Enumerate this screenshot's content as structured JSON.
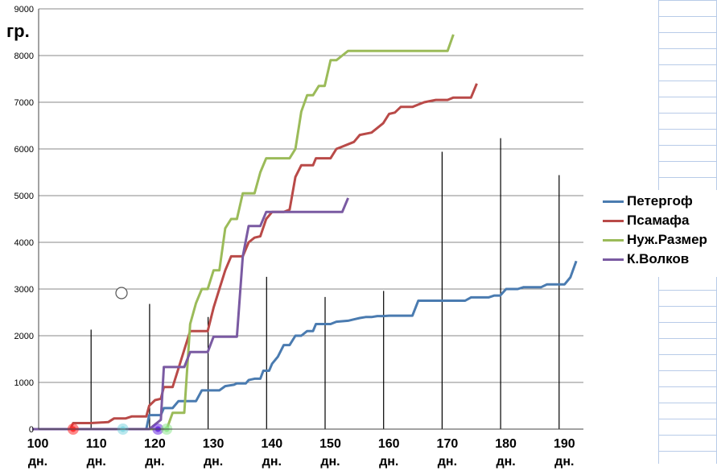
{
  "chart_data": {
    "type": "line",
    "ylabel": "гр.",
    "ylim": [
      0,
      9000
    ],
    "xlim": [
      100,
      193
    ],
    "yticks": [
      0,
      1000,
      2000,
      3000,
      4000,
      5000,
      6000,
      7000,
      8000,
      9000
    ],
    "xticks": [
      {
        "value": 100,
        "label": "100",
        "unit": "дн."
      },
      {
        "value": 110,
        "label": "110",
        "unit": "дн."
      },
      {
        "value": 120,
        "label": "120",
        "unit": "дн."
      },
      {
        "value": 130,
        "label": "130",
        "unit": "дн."
      },
      {
        "value": 140,
        "label": "140",
        "unit": "дн."
      },
      {
        "value": 150,
        "label": "150",
        "unit": "дн."
      },
      {
        "value": 160,
        "label": "160",
        "unit": "дн."
      },
      {
        "value": 170,
        "label": "170",
        "unit": "дн."
      },
      {
        "value": 180,
        "label": "180",
        "unit": "дн."
      },
      {
        "value": 190,
        "label": "190",
        "unit": "дн."
      }
    ],
    "grid": "horizontal",
    "legend_position": "right",
    "series": [
      {
        "name": "Петергоф",
        "color": "#4a7bb0",
        "points": [
          [
            100,
            0
          ],
          [
            119.5,
            0
          ],
          [
            120,
            300
          ],
          [
            122,
            300
          ],
          [
            122.5,
            450
          ],
          [
            124,
            450
          ],
          [
            125,
            600
          ],
          [
            128,
            600
          ],
          [
            129,
            830
          ],
          [
            132,
            830
          ],
          [
            133,
            920
          ],
          [
            134.5,
            950
          ],
          [
            135,
            980
          ],
          [
            136.5,
            980
          ],
          [
            137,
            1050
          ],
          [
            138,
            1080
          ],
          [
            139,
            1080
          ],
          [
            139.5,
            1250
          ],
          [
            140.5,
            1250
          ],
          [
            141,
            1400
          ],
          [
            142,
            1550
          ],
          [
            143,
            1800
          ],
          [
            144,
            1800
          ],
          [
            145,
            2000
          ],
          [
            146,
            2000
          ],
          [
            147,
            2100
          ],
          [
            148,
            2100
          ],
          [
            148.5,
            2250
          ],
          [
            151,
            2250
          ],
          [
            152,
            2300
          ],
          [
            154,
            2320
          ],
          [
            155,
            2350
          ],
          [
            156,
            2380
          ],
          [
            157,
            2400
          ],
          [
            158,
            2400
          ],
          [
            159,
            2420
          ],
          [
            160,
            2420
          ],
          [
            161,
            2430
          ],
          [
            165,
            2430
          ],
          [
            166,
            2750
          ],
          [
            174,
            2750
          ],
          [
            175,
            2820
          ],
          [
            178,
            2820
          ],
          [
            179,
            2860
          ],
          [
            180,
            2860
          ],
          [
            181,
            3000
          ],
          [
            183,
            3000
          ],
          [
            184,
            3040
          ],
          [
            187,
            3040
          ],
          [
            188,
            3100
          ],
          [
            191,
            3100
          ],
          [
            192,
            3250
          ],
          [
            193,
            3600
          ]
        ]
      },
      {
        "name": "Псамафа",
        "color": "#b94a48",
        "points": [
          [
            100,
            0
          ],
          [
            106.5,
            0
          ],
          [
            107,
            130
          ],
          [
            110,
            130
          ],
          [
            113,
            150
          ],
          [
            114,
            230
          ],
          [
            116,
            230
          ],
          [
            117,
            270
          ],
          [
            118,
            270
          ],
          [
            119.5,
            270
          ],
          [
            120,
            500
          ],
          [
            121,
            620
          ],
          [
            122,
            650
          ],
          [
            122.5,
            900
          ],
          [
            124,
            900
          ],
          [
            125,
            1300
          ],
          [
            126,
            1700
          ],
          [
            127,
            2100
          ],
          [
            129,
            2100
          ],
          [
            130,
            2100
          ],
          [
            131,
            2600
          ],
          [
            132,
            3000
          ],
          [
            133,
            3400
          ],
          [
            134,
            3700
          ],
          [
            136,
            3700
          ],
          [
            137,
            4000
          ],
          [
            138,
            4100
          ],
          [
            139,
            4130
          ],
          [
            140,
            4500
          ],
          [
            141,
            4650
          ],
          [
            143,
            4650
          ],
          [
            144,
            4700
          ],
          [
            145,
            5400
          ],
          [
            146,
            5650
          ],
          [
            148,
            5650
          ],
          [
            148.5,
            5800
          ],
          [
            151,
            5800
          ],
          [
            152,
            6000
          ],
          [
            153,
            6050
          ],
          [
            154,
            6100
          ],
          [
            155,
            6150
          ],
          [
            156,
            6300
          ],
          [
            158,
            6350
          ],
          [
            159,
            6450
          ],
          [
            160,
            6550
          ],
          [
            161,
            6750
          ],
          [
            162,
            6780
          ],
          [
            163,
            6900
          ],
          [
            165,
            6900
          ],
          [
            166,
            6950
          ],
          [
            167,
            7000
          ],
          [
            169,
            7050
          ],
          [
            170,
            7050
          ],
          [
            171,
            7050
          ],
          [
            172,
            7100
          ],
          [
            174,
            7100
          ],
          [
            175,
            7100
          ],
          [
            176,
            7400
          ]
        ]
      },
      {
        "name": "Нуж.Размер",
        "color": "#9bbb59",
        "points": [
          [
            100,
            0
          ],
          [
            123,
            0
          ],
          [
            124,
            350
          ],
          [
            126,
            350
          ],
          [
            127,
            2250
          ],
          [
            128,
            2700
          ],
          [
            129,
            3000
          ],
          [
            130,
            3000
          ],
          [
            131,
            3400
          ],
          [
            132,
            3400
          ],
          [
            133,
            4300
          ],
          [
            134,
            4500
          ],
          [
            135,
            4500
          ],
          [
            136,
            5050
          ],
          [
            138,
            5050
          ],
          [
            139,
            5500
          ],
          [
            140,
            5800
          ],
          [
            143,
            5800
          ],
          [
            144,
            5800
          ],
          [
            145,
            6000
          ],
          [
            146,
            6800
          ],
          [
            147,
            7150
          ],
          [
            148,
            7150
          ],
          [
            149,
            7350
          ],
          [
            150,
            7350
          ],
          [
            151,
            7900
          ],
          [
            152,
            7900
          ],
          [
            153,
            8000
          ],
          [
            154,
            8100
          ],
          [
            169,
            8100
          ],
          [
            170,
            8100
          ],
          [
            171,
            8100
          ],
          [
            172,
            8450
          ]
        ]
      },
      {
        "name": "К.Волков",
        "color": "#7a5aa2",
        "points": [
          [
            100,
            0
          ],
          [
            120,
            0
          ],
          [
            121,
            100
          ],
          [
            122,
            200
          ],
          [
            122.5,
            1330
          ],
          [
            126,
            1330
          ],
          [
            127,
            1650
          ],
          [
            130,
            1650
          ],
          [
            131,
            1980
          ],
          [
            135,
            1980
          ],
          [
            136,
            3700
          ],
          [
            137,
            4350
          ],
          [
            139,
            4350
          ],
          [
            140,
            4650
          ],
          [
            144,
            4650
          ],
          [
            153,
            4650
          ],
          [
            154,
            4950
          ]
        ]
      }
    ]
  },
  "colors": {
    "grid": "#888888",
    "spreadsheet_grid": "#b8cbe8"
  }
}
